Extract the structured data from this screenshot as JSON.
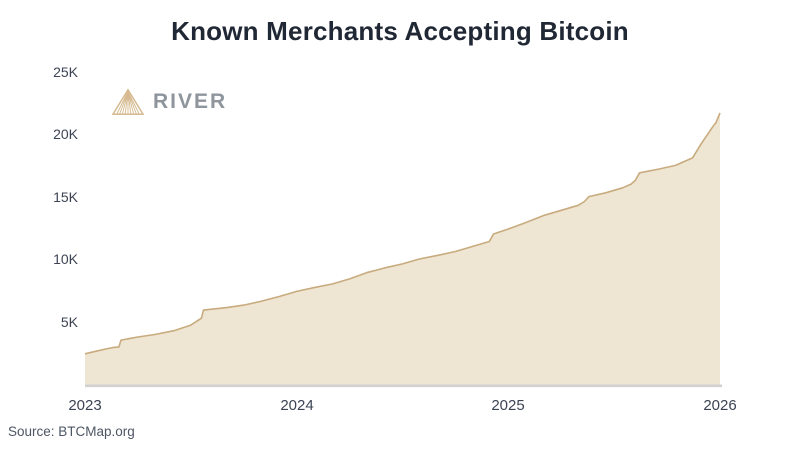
{
  "header": {
    "title": "Known Merchants Accepting Bitcoin"
  },
  "logo": {
    "brand": "River",
    "text": "RIVER"
  },
  "footer": {
    "source": "Source: BTCMap.org"
  },
  "colors": {
    "background": "#ffffff",
    "title_text": "#212835",
    "axis_label_text": "#3C4454",
    "area_fill": "#EEE5D2",
    "area_stroke": "#C8AB7E",
    "baseline": "#D2D2D2",
    "logo_gold": "#D5BA90",
    "logo_text": "#8E959D",
    "source_text": "#4D5665"
  },
  "chart_data": {
    "type": "area",
    "title": "Known Merchants Accepting Bitcoin",
    "xlabel": "",
    "ylabel": "",
    "grid": false,
    "legend_position": "none",
    "x_ticks": [
      "2023",
      "2024",
      "2025",
      "2026"
    ],
    "x_tick_years": [
      2023,
      2024,
      2025,
      2026
    ],
    "y_ticks": [
      "5K",
      "10K",
      "15K",
      "20K",
      "25K"
    ],
    "y_tick_values": [
      5000,
      10000,
      15000,
      20000,
      25000
    ],
    "x_range": [
      2023,
      2026
    ],
    "ylim": [
      0,
      25000
    ],
    "series": [
      {
        "name": "Known merchants accepting Bitcoin",
        "points": [
          [
            2023.0,
            2500
          ],
          [
            2023.05,
            2700
          ],
          [
            2023.09,
            2850
          ],
          [
            2023.13,
            3000
          ],
          [
            2023.16,
            3050
          ],
          [
            2023.17,
            3600
          ],
          [
            2023.25,
            3850
          ],
          [
            2023.33,
            4050
          ],
          [
            2023.42,
            4350
          ],
          [
            2023.5,
            4800
          ],
          [
            2023.55,
            5350
          ],
          [
            2023.56,
            6000
          ],
          [
            2023.67,
            6200
          ],
          [
            2023.75,
            6400
          ],
          [
            2023.83,
            6700
          ],
          [
            2023.92,
            7100
          ],
          [
            2024.0,
            7500
          ],
          [
            2024.08,
            7800
          ],
          [
            2024.17,
            8100
          ],
          [
            2024.25,
            8500
          ],
          [
            2024.33,
            9000
          ],
          [
            2024.42,
            9400
          ],
          [
            2024.5,
            9700
          ],
          [
            2024.58,
            10100
          ],
          [
            2024.67,
            10400
          ],
          [
            2024.75,
            10700
          ],
          [
            2024.83,
            11100
          ],
          [
            2024.91,
            11500
          ],
          [
            2024.93,
            12100
          ],
          [
            2025.0,
            12500
          ],
          [
            2025.08,
            13000
          ],
          [
            2025.17,
            13600
          ],
          [
            2025.25,
            14000
          ],
          [
            2025.33,
            14400
          ],
          [
            2025.36,
            14700
          ],
          [
            2025.38,
            15100
          ],
          [
            2025.46,
            15400
          ],
          [
            2025.54,
            15800
          ],
          [
            2025.58,
            16100
          ],
          [
            2025.6,
            16400
          ],
          [
            2025.62,
            17000
          ],
          [
            2025.71,
            17300
          ],
          [
            2025.79,
            17600
          ],
          [
            2025.83,
            17900
          ],
          [
            2025.87,
            18200
          ],
          [
            2025.91,
            19300
          ],
          [
            2025.95,
            20300
          ],
          [
            2025.97,
            20800
          ],
          [
            2025.98,
            21000
          ],
          [
            2026.0,
            21800
          ]
        ]
      }
    ]
  }
}
